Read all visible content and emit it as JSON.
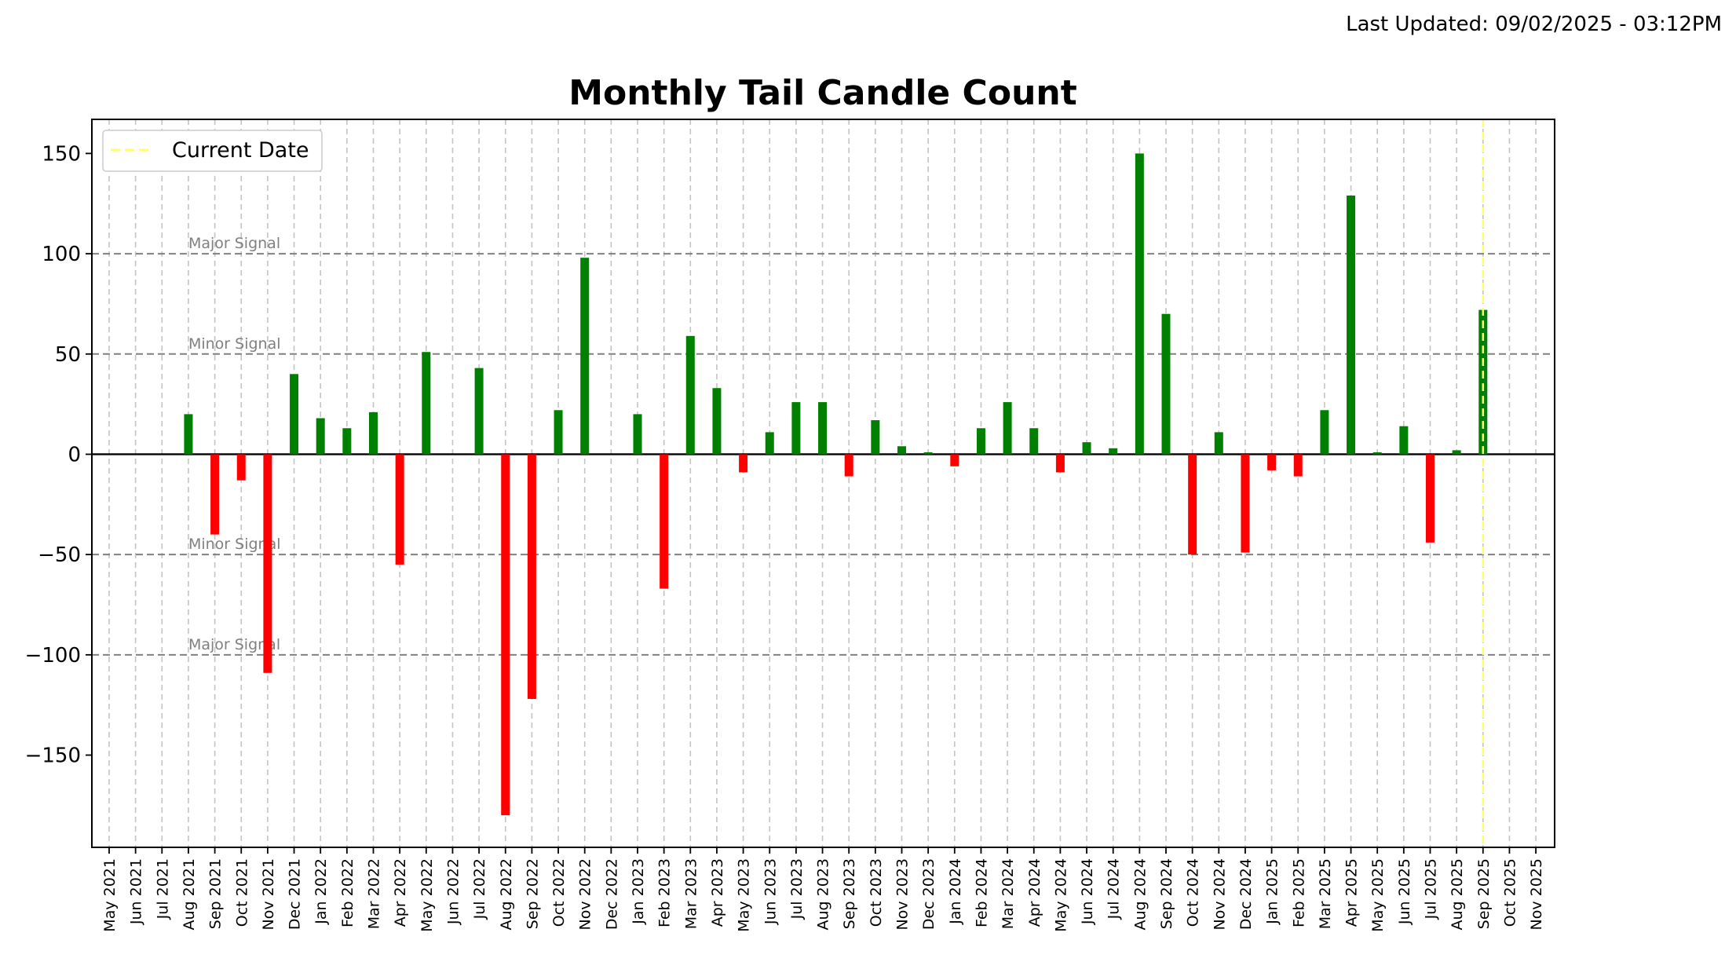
{
  "header": {
    "last_updated": "Last Updated: 09/02/2025 - 03:12PM"
  },
  "chart_data": {
    "type": "bar",
    "title": "Monthly Tail Candle Count",
    "xlabel": "",
    "ylabel": "",
    "ylim": [
      -196,
      167
    ],
    "yticks": [
      150,
      100,
      50,
      0,
      -50,
      -100,
      -150
    ],
    "ytick_labels": [
      "150",
      "100",
      "50",
      "0",
      "−50",
      "−100",
      "−150"
    ],
    "categories": [
      "May 2021",
      "Jun 2021",
      "Jul 2021",
      "Aug 2021",
      "Sep 2021",
      "Oct 2021",
      "Nov 2021",
      "Dec 2021",
      "Jan 2022",
      "Feb 2022",
      "Mar 2022",
      "Apr 2022",
      "May 2022",
      "Jun 2022",
      "Jul 2022",
      "Aug 2022",
      "Sep 2022",
      "Oct 2022",
      "Nov 2022",
      "Dec 2022",
      "Jan 2023",
      "Feb 2023",
      "Mar 2023",
      "Apr 2023",
      "May 2023",
      "Jun 2023",
      "Jul 2023",
      "Aug 2023",
      "Sep 2023",
      "Oct 2023",
      "Nov 2023",
      "Dec 2023",
      "Jan 2024",
      "Feb 2024",
      "Mar 2024",
      "Apr 2024",
      "May 2024",
      "Jun 2024",
      "Jul 2024",
      "Aug 2024",
      "Sep 2024",
      "Oct 2024",
      "Nov 2024",
      "Dec 2024",
      "Jan 2025",
      "Feb 2025",
      "Mar 2025",
      "Apr 2025",
      "May 2025",
      "Jun 2025",
      "Jul 2025",
      "Aug 2025",
      "Sep 2025",
      "Oct 2025",
      "Nov 2025"
    ],
    "values": [
      0,
      0,
      0,
      20,
      -40,
      -13,
      -109,
      40,
      18,
      13,
      21,
      -55,
      51,
      0,
      43,
      -180,
      -122,
      22,
      98,
      0,
      20,
      -67,
      59,
      33,
      -9,
      11,
      26,
      26,
      -11,
      17,
      4,
      1,
      -6,
      13,
      26,
      13,
      -9,
      6,
      3,
      150,
      70,
      -50,
      11,
      -49,
      -8,
      -11,
      22,
      129,
      1,
      14,
      -44,
      2,
      72,
      0,
      0
    ],
    "positive_color": "#008000",
    "negative_color": "#ff0000",
    "reference_lines": [
      {
        "value": 100,
        "label": "Major Signal"
      },
      {
        "value": 50,
        "label": "Minor Signal"
      },
      {
        "value": -50,
        "label": "Minor Signal"
      },
      {
        "value": -100,
        "label": "Major Signal"
      }
    ],
    "current_date": {
      "category": "Sep 2025",
      "label": "Current Date",
      "color": "#ffff66"
    },
    "legend": {
      "position": "top-left",
      "entries": [
        "Current Date"
      ]
    },
    "grid": "vertical dashed"
  }
}
